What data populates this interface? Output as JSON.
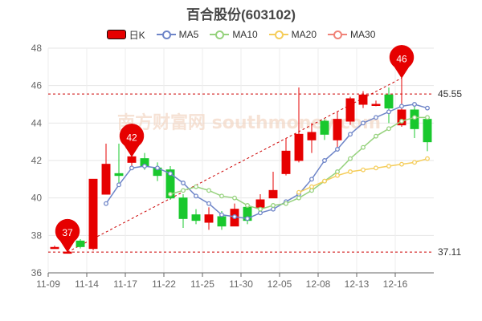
{
  "title": "百合股份(603102)",
  "watermark": "南方财富网 southmoney.com",
  "colors": {
    "up": "#e60000",
    "down": "#19c82d",
    "MA5": "#6e85c8",
    "MA10": "#96d27d",
    "MA20": "#f5cd5a",
    "MA30": "#f08278",
    "reference_line": "#cc0000"
  },
  "chart_data": {
    "type": "candlestick",
    "title": "百合股份(603102)",
    "legend": [
      "日K",
      "MA5",
      "MA10",
      "MA20",
      "MA30"
    ],
    "legend_position": "top-center",
    "ylim": [
      36,
      48
    ],
    "yticks": [
      36,
      38,
      40,
      42,
      44,
      46,
      48
    ],
    "grid": true,
    "xtick_labels": [
      "11-09",
      "11-14",
      "11-17",
      "11-22",
      "11-25",
      "11-30",
      "12-05",
      "12-08",
      "12-13",
      "12-16"
    ],
    "candles": [
      {
        "date": "11-09",
        "open": 37.36,
        "close": 37.36,
        "low": 37.3,
        "high": 37.45
      },
      {
        "date": "11-10",
        "open": 37.11,
        "close": 37.11,
        "low": 37.05,
        "high": 37.15
      },
      {
        "date": "11-11",
        "open": 37.7,
        "close": 37.4,
        "low": 37.3,
        "high": 37.8
      },
      {
        "date": "11-14",
        "open": 37.3,
        "close": 41.0,
        "low": 37.2,
        "high": 41.0
      },
      {
        "date": "11-15",
        "open": 40.2,
        "close": 41.8,
        "low": 40.2,
        "high": 42.9
      },
      {
        "date": "11-16",
        "open": 41.3,
        "close": 41.2,
        "low": 40.8,
        "high": 42.9
      },
      {
        "date": "11-17",
        "open": 41.9,
        "close": 42.2,
        "low": 41.5,
        "high": 42.6
      },
      {
        "date": "11-18",
        "open": 42.1,
        "close": 41.7,
        "low": 41.5,
        "high": 42.4
      },
      {
        "date": "11-21",
        "open": 41.6,
        "close": 41.2,
        "low": 40.9,
        "high": 41.9
      },
      {
        "date": "11-22",
        "open": 41.5,
        "close": 40.0,
        "low": 39.9,
        "high": 41.7
      },
      {
        "date": "11-23",
        "open": 40.0,
        "close": 38.9,
        "low": 38.4,
        "high": 40.2
      },
      {
        "date": "11-24",
        "open": 39.1,
        "close": 38.8,
        "low": 38.6,
        "high": 39.4
      },
      {
        "date": "11-25",
        "open": 38.7,
        "close": 39.1,
        "low": 38.3,
        "high": 39.5
      },
      {
        "date": "11-28",
        "open": 39.0,
        "close": 38.5,
        "low": 38.3,
        "high": 39.3
      },
      {
        "date": "11-29",
        "open": 38.5,
        "close": 39.4,
        "low": 38.5,
        "high": 39.7
      },
      {
        "date": "11-30",
        "open": 39.5,
        "close": 38.8,
        "low": 38.6,
        "high": 39.6
      },
      {
        "date": "12-01",
        "open": 39.5,
        "close": 39.9,
        "low": 39.4,
        "high": 40.2
      },
      {
        "date": "12-02",
        "open": 40.0,
        "close": 40.4,
        "low": 40.0,
        "high": 41.4
      },
      {
        "date": "12-05",
        "open": 41.3,
        "close": 42.5,
        "low": 41.2,
        "high": 43.2
      },
      {
        "date": "12-06",
        "open": 42.0,
        "close": 43.4,
        "low": 41.9,
        "high": 45.9
      },
      {
        "date": "12-07",
        "open": 43.1,
        "close": 43.5,
        "low": 42.4,
        "high": 44.0
      },
      {
        "date": "12-08",
        "open": 44.1,
        "close": 43.4,
        "low": 43.1,
        "high": 44.2
      },
      {
        "date": "12-09",
        "open": 43.1,
        "close": 44.2,
        "low": 42.7,
        "high": 44.6
      },
      {
        "date": "12-12",
        "open": 44.1,
        "close": 45.3,
        "low": 43.9,
        "high": 45.4
      },
      {
        "date": "12-13",
        "open": 45.0,
        "close": 45.5,
        "low": 44.8,
        "high": 45.7
      },
      {
        "date": "12-14",
        "open": 45.0,
        "close": 45.0,
        "low": 44.9,
        "high": 45.2
      },
      {
        "date": "12-15",
        "open": 45.5,
        "close": 44.8,
        "low": 44.0,
        "high": 45.9
      },
      {
        "date": "12-16",
        "open": 43.9,
        "close": 44.7,
        "low": 43.8,
        "high": 46.4
      },
      {
        "date": "12-19",
        "open": 44.7,
        "close": 43.7,
        "low": 43.2,
        "high": 45.0
      },
      {
        "date": "12-20",
        "open": 44.2,
        "close": 43.0,
        "low": 42.5,
        "high": 44.4
      }
    ],
    "series": [
      {
        "name": "MA5",
        "values": [
          null,
          null,
          null,
          null,
          39.7,
          40.7,
          41.6,
          41.7,
          41.6,
          41.3,
          40.8,
          40.1,
          39.7,
          39.1,
          39.0,
          38.9,
          39.2,
          39.4,
          39.8,
          40.2,
          41.0,
          42.0,
          42.6,
          43.4,
          44.0,
          44.3,
          44.6,
          44.9,
          45.0,
          44.8
        ]
      },
      {
        "name": "MA10",
        "values": [
          null,
          null,
          null,
          null,
          null,
          null,
          null,
          null,
          null,
          40.2,
          40.4,
          40.6,
          40.4,
          40.1,
          40.0,
          39.6,
          39.4,
          39.6,
          39.7,
          40.0,
          40.4,
          40.9,
          41.4,
          42.1,
          42.7,
          43.3,
          43.7,
          44.1,
          44.3,
          44.3
        ]
      },
      {
        "name": "MA20",
        "values": [
          null,
          null,
          null,
          null,
          null,
          null,
          null,
          null,
          null,
          null,
          null,
          null,
          null,
          null,
          null,
          null,
          null,
          null,
          null,
          40.3,
          40.6,
          40.9,
          41.2,
          41.4,
          41.5,
          41.6,
          41.7,
          41.8,
          41.9,
          42.1
        ]
      },
      {
        "name": "MA30",
        "values": []
      }
    ],
    "annotations": [
      {
        "label": "37",
        "type": "low-marker",
        "date": "11-10",
        "value": 37.11
      },
      {
        "label": "42",
        "type": "high-marker",
        "date": "11-17",
        "value": 42.2
      },
      {
        "label": "46",
        "type": "high-marker",
        "date": "12-16",
        "value": 46.4
      },
      {
        "label": "45.55",
        "type": "reference-line",
        "value": 45.55
      },
      {
        "label": "37.11",
        "type": "reference-line",
        "value": 37.11
      }
    ],
    "trendline": {
      "from": {
        "date": "11-10",
        "value": 37.11
      },
      "to": {
        "date": "12-16",
        "value": 46.4
      }
    }
  }
}
